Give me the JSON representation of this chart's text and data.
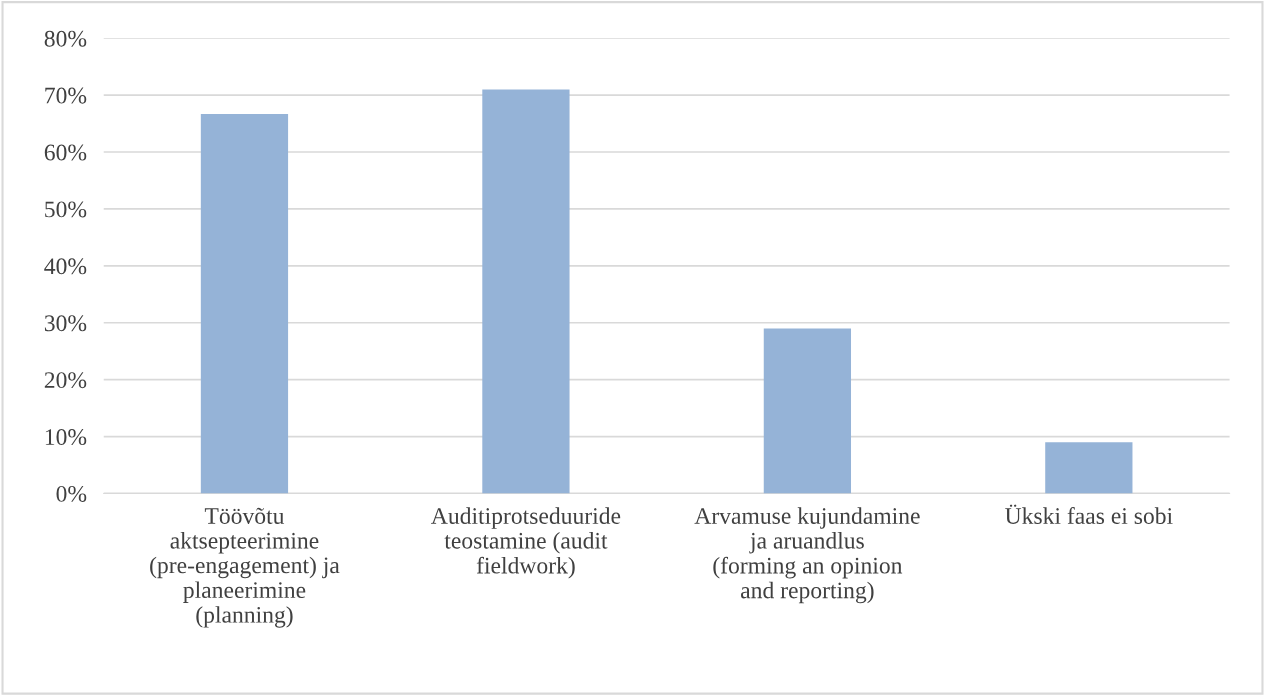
{
  "chart_data": {
    "type": "bar",
    "categories": [
      "Töövõtu aktsepteerimine (pre-engagement) ja planeerimine (planning)",
      "Auditiprotseduuride teostamine (audit fieldwork)",
      "Arvamuse kujundamine ja aruandlus (forming an opinion and reporting)",
      "Ükski faas ei sobi"
    ],
    "values": [
      0.667,
      0.71,
      0.29,
      0.09
    ],
    "color": "#95b3d7",
    "ylim": [
      0,
      0.8
    ],
    "yticks": [
      {
        "value": 0,
        "label": "0%"
      },
      {
        "value": 0.1,
        "label": "10%"
      },
      {
        "value": 0.2,
        "label": "20%"
      },
      {
        "value": 0.3,
        "label": "30%"
      },
      {
        "value": 0.4,
        "label": "40%"
      },
      {
        "value": 0.5,
        "label": "50%"
      },
      {
        "value": 0.6,
        "label": "60%"
      },
      {
        "value": 0.7,
        "label": "70%"
      },
      {
        "value": 0.8,
        "label": "80%"
      }
    ],
    "grid": "y",
    "legend": false
  }
}
